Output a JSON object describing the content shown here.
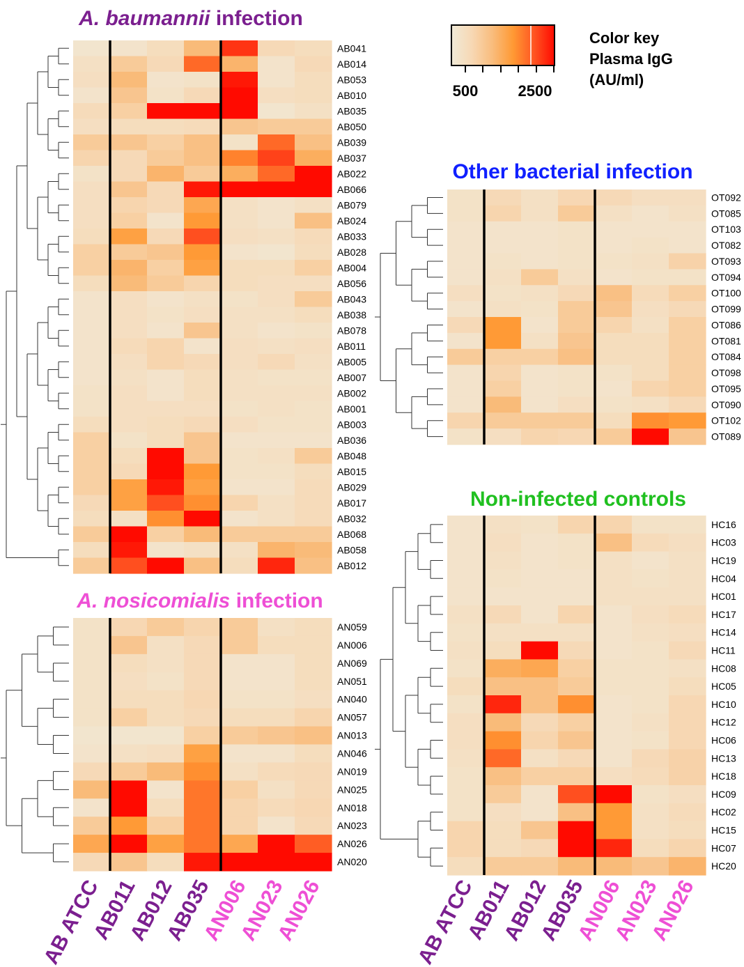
{
  "colors": {
    "scale": [
      "#f0ead8",
      "#f7d8b4",
      "#f9bc7c",
      "#ff9933",
      "#ff5522",
      "#ff0a00"
    ],
    "ab_label": "#7b1f8f",
    "an_label": "#ee4fd5",
    "panel_a_title": "#7b1f8f",
    "panel_b_title": "#ee4fd5",
    "panel_c_title": "#1020ff",
    "panel_d_title": "#20c020"
  },
  "color_key": {
    "title_lines": [
      "Color key",
      "Plasma IgG",
      "(AU/ml)"
    ],
    "tick_labels": [
      "500",
      "2500"
    ],
    "range": [
      300,
      3000
    ]
  },
  "columns": {
    "labels": [
      "AB ATCC",
      "AB011",
      "AB012",
      "AB035",
      "AN006",
      "AN023",
      "AN026"
    ],
    "groups": [
      "ab",
      "ab",
      "ab",
      "ab",
      "an",
      "an",
      "an"
    ]
  },
  "chart_data": [
    {
      "type": "heatmap",
      "title_italic": "A. baumannii",
      "title_rest": " infection",
      "x": [
        "AB ATCC",
        "AB011",
        "AB012",
        "AB035",
        "AN006",
        "AN023",
        "AN026"
      ],
      "y": [
        "AB041",
        "AB014",
        "AB053",
        "AB010",
        "AB035",
        "AB050",
        "AB039",
        "AB037",
        "AB022",
        "AB066",
        "AB079",
        "AB024",
        "AB033",
        "AB028",
        "AB004",
        "AB056",
        "AB043",
        "AB038",
        "AB078",
        "AB011",
        "AB005",
        "AB007",
        "AB002",
        "AB001",
        "AB003",
        "AB036",
        "AB048",
        "AB015",
        "AB029",
        "AB017",
        "AB032",
        "AB068",
        "AB058",
        "AB012"
      ],
      "values": [
        [
          450,
          500,
          700,
          1400,
          2700,
          800,
          700
        ],
        [
          600,
          1100,
          800,
          2300,
          1500,
          500,
          800
        ],
        [
          650,
          1400,
          500,
          550,
          2900,
          500,
          700
        ],
        [
          500,
          1200,
          550,
          800,
          3000,
          650,
          700
        ],
        [
          750,
          1000,
          3000,
          3000,
          3000,
          450,
          600
        ],
        [
          650,
          700,
          700,
          750,
          1200,
          1100,
          1100
        ],
        [
          1100,
          1200,
          1000,
          1300,
          550,
          2300,
          1300
        ],
        [
          900,
          800,
          1100,
          1300,
          2100,
          2600,
          1600
        ],
        [
          550,
          800,
          1500,
          1100,
          1600,
          2300,
          3000
        ],
        [
          650,
          1200,
          800,
          2900,
          3000,
          3000,
          3000
        ],
        [
          650,
          900,
          800,
          1700,
          600,
          500,
          600
        ],
        [
          650,
          1000,
          500,
          1900,
          600,
          500,
          1300
        ],
        [
          700,
          1800,
          800,
          2500,
          650,
          600,
          750
        ],
        [
          1000,
          1100,
          1200,
          1900,
          500,
          450,
          700
        ],
        [
          1000,
          1500,
          1000,
          1800,
          700,
          700,
          1000
        ],
        [
          700,
          1400,
          1100,
          900,
          700,
          650,
          650
        ],
        [
          500,
          650,
          500,
          600,
          550,
          650,
          1100
        ],
        [
          500,
          650,
          550,
          650,
          600,
          600,
          700
        ],
        [
          500,
          650,
          500,
          1200,
          600,
          500,
          550
        ],
        [
          500,
          750,
          900,
          500,
          650,
          600,
          650
        ],
        [
          500,
          650,
          900,
          800,
          650,
          800,
          600
        ],
        [
          500,
          600,
          500,
          700,
          600,
          550,
          550
        ],
        [
          550,
          650,
          500,
          700,
          600,
          600,
          600
        ],
        [
          550,
          650,
          650,
          650,
          550,
          600,
          550
        ],
        [
          700,
          650,
          700,
          800,
          650,
          550,
          550
        ],
        [
          1000,
          550,
          700,
          1200,
          500,
          500,
          500
        ],
        [
          1000,
          700,
          3000,
          1200,
          550,
          600,
          1100
        ],
        [
          1000,
          800,
          3000,
          1900,
          550,
          550,
          700
        ],
        [
          1000,
          1800,
          2900,
          1800,
          500,
          500,
          750
        ],
        [
          800,
          1800,
          2500,
          2000,
          900,
          600,
          750
        ],
        [
          700,
          600,
          2000,
          3000,
          500,
          600,
          750
        ],
        [
          1100,
          3000,
          1000,
          1400,
          1100,
          1100,
          1100
        ],
        [
          700,
          2900,
          500,
          600,
          600,
          1500,
          1400
        ],
        [
          1100,
          2500,
          3000,
          1300,
          700,
          2800,
          1300
        ]
      ]
    },
    {
      "type": "heatmap",
      "title_italic": "A. nosicomialis",
      "title_rest": " infection",
      "x": [
        "AB ATCC",
        "AB011",
        "AB012",
        "AB035",
        "AN006",
        "AN023",
        "AN026"
      ],
      "y": [
        "AN059",
        "AN006",
        "AN069",
        "AN051",
        "AN040",
        "AN057",
        "AN013",
        "AN046",
        "AN019",
        "AN025",
        "AN018",
        "AN023",
        "AN026",
        "AN020"
      ],
      "values": [
        [
          550,
          850,
          1100,
          900,
          1100,
          600,
          700
        ],
        [
          550,
          1200,
          600,
          800,
          1100,
          700,
          700
        ],
        [
          550,
          700,
          600,
          800,
          500,
          500,
          700
        ],
        [
          550,
          650,
          550,
          800,
          500,
          500,
          700
        ],
        [
          550,
          700,
          700,
          850,
          550,
          550,
          650
        ],
        [
          550,
          1000,
          700,
          800,
          700,
          700,
          900
        ],
        [
          450,
          450,
          450,
          1000,
          1100,
          1200,
          1300
        ],
        [
          500,
          600,
          650,
          1800,
          500,
          500,
          700
        ],
        [
          800,
          1100,
          1400,
          2000,
          600,
          750,
          800
        ],
        [
          1400,
          3000,
          500,
          2200,
          1000,
          600,
          800
        ],
        [
          500,
          3000,
          700,
          2200,
          900,
          750,
          850
        ],
        [
          1100,
          1900,
          1000,
          2200,
          900,
          500,
          800
        ],
        [
          1700,
          3000,
          1800,
          2200,
          1700,
          3000,
          2400
        ],
        [
          800,
          1200,
          700,
          2900,
          3000,
          3000,
          3000
        ]
      ]
    },
    {
      "type": "heatmap",
      "title_italic": "",
      "title_rest": "Other bacterial infection",
      "x": [
        "AB ATCC",
        "AB011",
        "AB012",
        "AB035",
        "AN006",
        "AN023",
        "AN026"
      ],
      "y": [
        "OT092",
        "OT085",
        "OT103",
        "OT082",
        "OT093",
        "OT094",
        "OT100",
        "OT099",
        "OT086",
        "OT081",
        "OT084",
        "OT098",
        "OT095",
        "OT090",
        "OT102",
        "OT089"
      ],
      "values": [
        [
          550,
          800,
          600,
          850,
          800,
          650,
          650
        ],
        [
          550,
          900,
          600,
          1100,
          600,
          500,
          600
        ],
        [
          500,
          500,
          500,
          550,
          500,
          500,
          500
        ],
        [
          500,
          500,
          500,
          550,
          500,
          550,
          500
        ],
        [
          500,
          550,
          500,
          550,
          550,
          600,
          950
        ],
        [
          500,
          600,
          1100,
          600,
          500,
          550,
          550
        ],
        [
          650,
          550,
          600,
          800,
          1300,
          750,
          1000
        ],
        [
          500,
          600,
          550,
          1100,
          1200,
          650,
          800
        ],
        [
          800,
          1900,
          500,
          1100,
          900,
          600,
          1000
        ],
        [
          500,
          1900,
          600,
          1200,
          700,
          700,
          1000
        ],
        [
          1100,
          1000,
          1000,
          1300,
          700,
          700,
          1000
        ],
        [
          500,
          900,
          500,
          550,
          550,
          700,
          1000
        ],
        [
          500,
          1000,
          500,
          550,
          500,
          900,
          1000
        ],
        [
          500,
          1400,
          500,
          650,
          550,
          600,
          800
        ],
        [
          900,
          1100,
          1100,
          1100,
          700,
          2000,
          1900
        ],
        [
          550,
          650,
          900,
          850,
          1100,
          3000,
          1200
        ]
      ]
    },
    {
      "type": "heatmap",
      "title_italic": "",
      "title_rest": "Non-infected controls",
      "x": [
        "AB ATCC",
        "AB011",
        "AB012",
        "AB035",
        "AN006",
        "AN023",
        "AN026"
      ],
      "y": [
        "HC16",
        "HC03",
        "HC19",
        "HC04",
        "HC01",
        "HC17",
        "HC14",
        "HC11",
        "HC08",
        "HC05",
        "HC10",
        "HC12",
        "HC06",
        "HC13",
        "HC18",
        "HC09",
        "HC02",
        "HC15",
        "HC07",
        "HC20"
      ],
      "values": [
        [
          500,
          600,
          550,
          900,
          900,
          550,
          550
        ],
        [
          500,
          650,
          500,
          550,
          1300,
          750,
          650
        ],
        [
          500,
          600,
          500,
          550,
          600,
          500,
          600
        ],
        [
          500,
          550,
          500,
          500,
          600,
          550,
          600
        ],
        [
          500,
          500,
          500,
          500,
          600,
          600,
          600
        ],
        [
          600,
          800,
          500,
          900,
          500,
          650,
          750
        ],
        [
          550,
          600,
          600,
          600,
          500,
          600,
          650
        ],
        [
          600,
          700,
          3000,
          800,
          500,
          550,
          800
        ],
        [
          550,
          1600,
          1700,
          1000,
          550,
          550,
          600
        ],
        [
          700,
          1300,
          1300,
          1100,
          550,
          550,
          700
        ],
        [
          550,
          2800,
          1300,
          2000,
          500,
          550,
          850
        ],
        [
          650,
          1400,
          800,
          1000,
          500,
          600,
          850
        ],
        [
          650,
          2000,
          900,
          1200,
          500,
          550,
          850
        ],
        [
          600,
          2300,
          600,
          800,
          500,
          800,
          950
        ],
        [
          550,
          1300,
          1000,
          1000,
          650,
          750,
          950
        ],
        [
          550,
          1100,
          500,
          2500,
          3000,
          550,
          650
        ],
        [
          550,
          650,
          500,
          1300,
          1900,
          600,
          750
        ],
        [
          900,
          700,
          1200,
          3000,
          1900,
          600,
          700
        ],
        [
          900,
          700,
          800,
          3000,
          2800,
          700,
          900
        ],
        [
          700,
          1100,
          1100,
          1400,
          1400,
          1200,
          1500
        ]
      ]
    }
  ]
}
